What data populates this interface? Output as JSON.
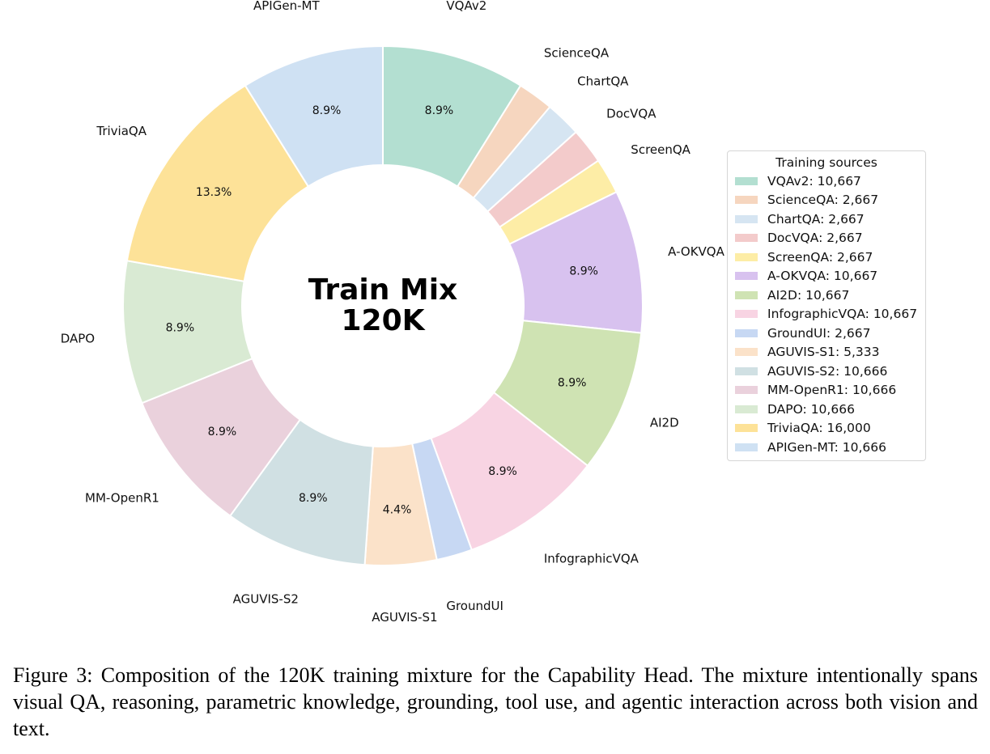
{
  "chart_data": {
    "type": "pie",
    "title": "Train Mix\n120K",
    "title_lines": [
      "Train Mix",
      "120K"
    ],
    "legend_title": "Training sources",
    "legend_placement": "right",
    "slices": [
      {
        "name": "VQAv2",
        "value": 10667,
        "pct_label": "8.9%",
        "legend": "VQAv2: 10,667",
        "color": "#b3dfd1"
      },
      {
        "name": "ScienceQA",
        "value": 2667,
        "pct_label": "",
        "legend": "ScienceQA: 2,667",
        "color": "#f6d6bf"
      },
      {
        "name": "ChartQA",
        "value": 2667,
        "pct_label": "",
        "legend": "ChartQA: 2,667",
        "color": "#d6e5f2"
      },
      {
        "name": "DocVQA",
        "value": 2667,
        "pct_label": "",
        "legend": "DocVQA: 2,667",
        "color": "#f3cbcb"
      },
      {
        "name": "ScreenQA",
        "value": 2667,
        "pct_label": "",
        "legend": "ScreenQA: 2,667",
        "color": "#fdeda6"
      },
      {
        "name": "A-OKVQA",
        "value": 10667,
        "pct_label": "8.9%",
        "legend": "A-OKVQA: 10,667",
        "color": "#d8c2ef"
      },
      {
        "name": "AI2D",
        "value": 10667,
        "pct_label": "8.9%",
        "legend": "AI2D: 10,667",
        "color": "#cfe3b3"
      },
      {
        "name": "InfographicVQA",
        "value": 10667,
        "pct_label": "8.9%",
        "legend": "InfographicVQA: 10,667",
        "color": "#f8d4e3"
      },
      {
        "name": "GroundUI",
        "value": 2667,
        "pct_label": "",
        "legend": "GroundUI: 2,667",
        "color": "#c7d8f3"
      },
      {
        "name": "AGUVIS-S1",
        "value": 5333,
        "pct_label": "4.4%",
        "legend": "AGUVIS-S1: 5,333",
        "color": "#fbe2c9"
      },
      {
        "name": "AGUVIS-S2",
        "value": 10666,
        "pct_label": "8.9%",
        "legend": "AGUVIS-S2: 10,666",
        "color": "#d0e0e3"
      },
      {
        "name": "MM-OpenR1",
        "value": 10666,
        "pct_label": "8.9%",
        "legend": "MM-OpenR1: 10,666",
        "color": "#ead1dc"
      },
      {
        "name": "DAPO",
        "value": 10666,
        "pct_label": "8.9%",
        "legend": "DAPO: 10,666",
        "color": "#d9ead3"
      },
      {
        "name": "TriviaQA",
        "value": 16000,
        "pct_label": "13.3%",
        "legend": "TriviaQA: 16,000",
        "color": "#fde298"
      },
      {
        "name": "APIGen-MT",
        "value": 10666,
        "pct_label": "8.9%",
        "legend": "APIGen-MT: 10,666",
        "color": "#cfe1f3"
      }
    ]
  },
  "caption": "Figure 3: Composition of the 120K training mixture for the Capability Head. The mixture intentionally spans visual QA, reasoning, parametric knowledge, grounding, tool use, and agentic interaction across both vision and text."
}
